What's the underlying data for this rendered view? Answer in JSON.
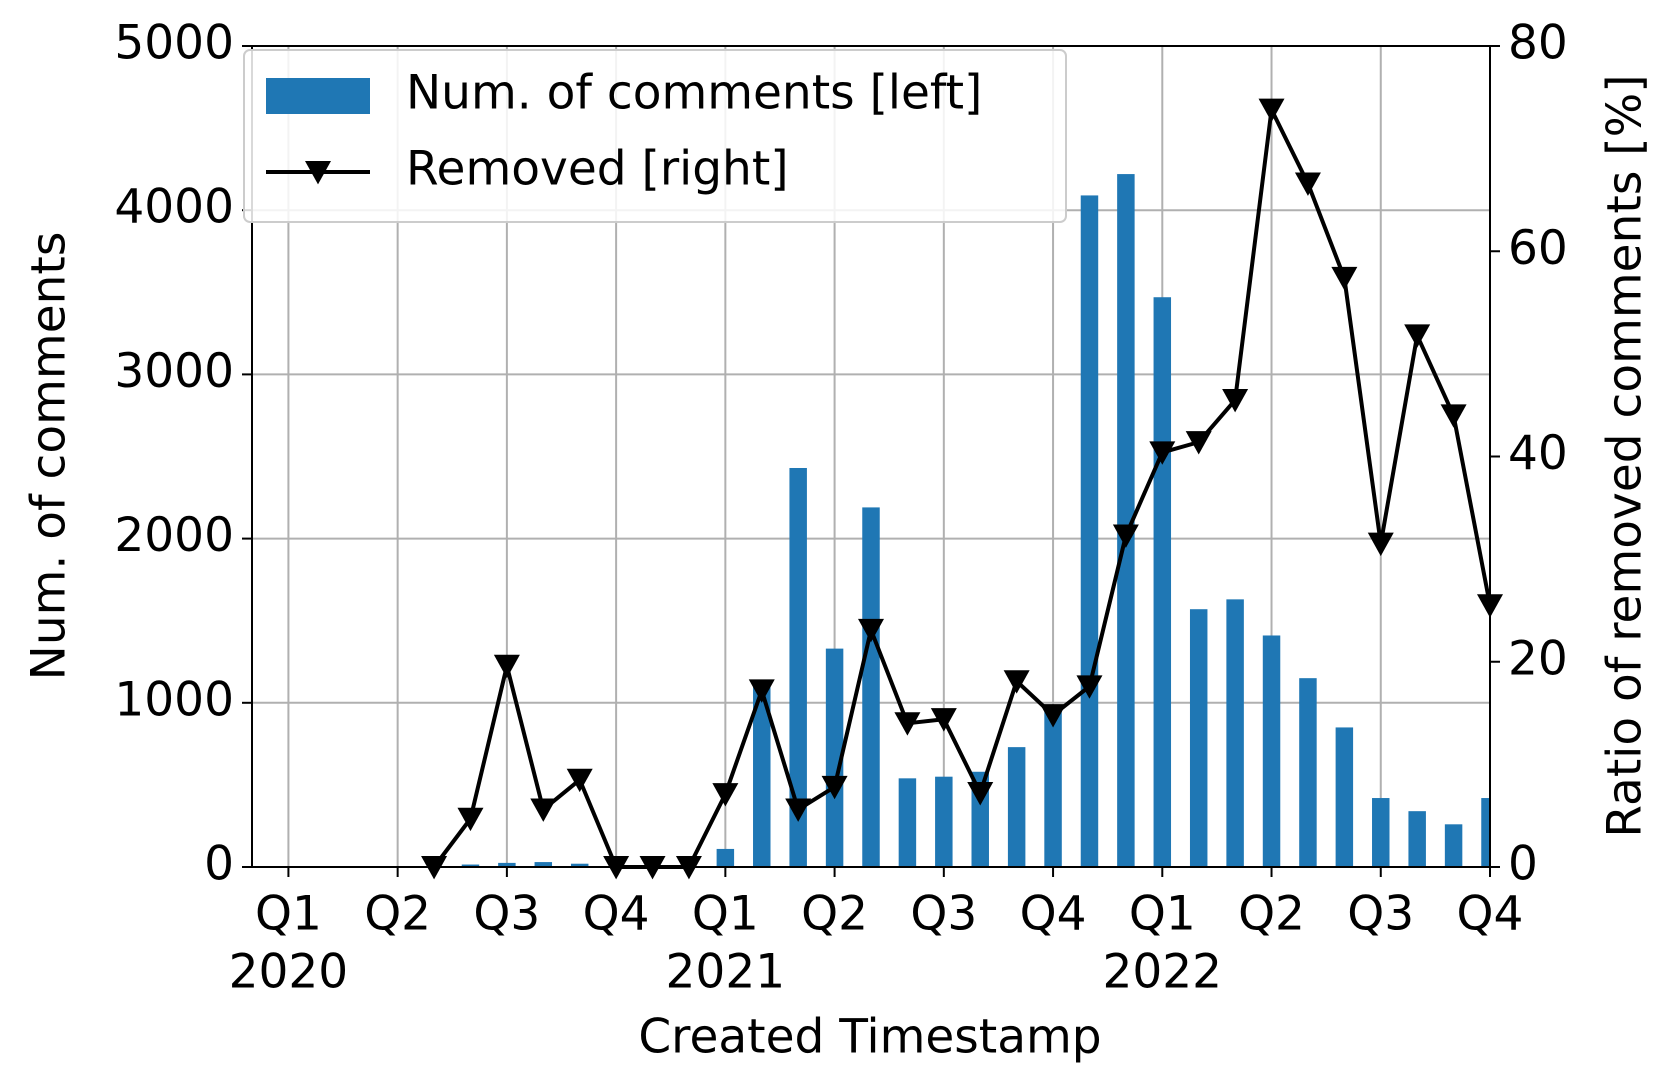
{
  "chart_data": {
    "type": "bar+line",
    "x_label": "Created Timestamp",
    "y_label": "Num. of comments",
    "y2_label": "Ratio of removed comments [%]",
    "x": [
      4,
      5,
      6,
      7,
      8,
      9,
      10,
      11,
      12,
      13,
      14,
      15,
      16,
      17,
      18,
      19,
      20,
      21,
      22,
      23,
      24,
      25,
      26,
      27,
      28,
      29,
      30,
      31,
      32,
      33
    ],
    "xlim": [
      -1,
      33
    ],
    "xticks": [
      {
        "value": 0,
        "label": "Q1"
      },
      {
        "value": 3,
        "label": "Q2"
      },
      {
        "value": 6,
        "label": "Q3"
      },
      {
        "value": 9,
        "label": "Q4"
      },
      {
        "value": 12,
        "label": "Q1"
      },
      {
        "value": 15,
        "label": "Q2"
      },
      {
        "value": 18,
        "label": "Q3"
      },
      {
        "value": 21,
        "label": "Q4"
      },
      {
        "value": 24,
        "label": "Q1"
      },
      {
        "value": 27,
        "label": "Q2"
      },
      {
        "value": 30,
        "label": "Q3"
      },
      {
        "value": 33,
        "label": "Q4"
      }
    ],
    "year_ticks": [
      {
        "value": 0,
        "label": "2020"
      },
      {
        "value": 12,
        "label": "2021"
      },
      {
        "value": 24,
        "label": "2022"
      }
    ],
    "ylim": [
      0,
      5000
    ],
    "yticks": [
      0,
      1000,
      2000,
      3000,
      4000,
      5000
    ],
    "y2lim": [
      0,
      80
    ],
    "y2ticks": [
      0,
      20,
      40,
      60,
      80
    ],
    "grid": true,
    "legend": "upper left",
    "series": [
      {
        "name": "Num. of comments [left]",
        "type": "bar",
        "color": "#1f77b4",
        "values": [
          0,
          15,
          25,
          30,
          20,
          0,
          0,
          0,
          110,
          1100,
          2430,
          1330,
          2190,
          540,
          550,
          580,
          730,
          950,
          4090,
          4220,
          3470,
          1570,
          1630,
          1410,
          1150,
          850,
          420,
          340,
          260,
          420
        ]
      },
      {
        "name": "Removed [right]",
        "type": "line",
        "color": "#000000",
        "axis": "y2",
        "values": [
          0,
          4.7,
          19.6,
          5.6,
          8.5,
          0,
          0,
          0,
          7.1,
          17.2,
          5.6,
          7.8,
          23.1,
          14,
          14.4,
          7.2,
          18.1,
          14.8,
          17.6,
          32.3,
          40.4,
          41.4,
          45.5,
          73.8,
          66.6,
          57.4,
          31.5,
          51.8,
          44,
          25.5
        ]
      }
    ]
  }
}
